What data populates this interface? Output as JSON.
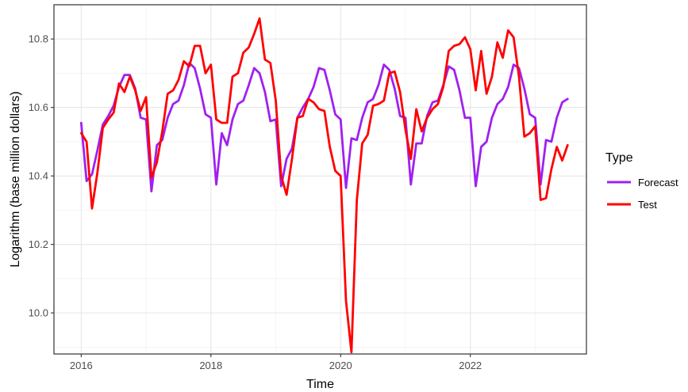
{
  "chart_data": {
    "type": "line",
    "title": "",
    "xlabel": "Time",
    "ylabel": "Logarithm (base million dollars)",
    "xlim": [
      2015.58,
      2023.79
    ],
    "ylim": [
      9.88,
      10.9
    ],
    "x_ticks": [
      2016,
      2018,
      2020,
      2022
    ],
    "x_tick_labels": [
      "2016",
      "2018",
      "2020",
      "2022"
    ],
    "y_ticks": [
      10.0,
      10.2,
      10.4,
      10.6,
      10.8
    ],
    "y_tick_labels": [
      "10.0",
      "10.2",
      "10.4",
      "10.6",
      "10.8"
    ],
    "grid": true,
    "legend": {
      "title": "Type",
      "position": "right",
      "entries": [
        "Forecast",
        "Test"
      ]
    },
    "series": [
      {
        "name": "Forecast",
        "color": "#a020f0",
        "x": [
          2016.0,
          2016.083,
          2016.167,
          2016.25,
          2016.333,
          2016.417,
          2016.5,
          2016.583,
          2016.667,
          2016.75,
          2016.833,
          2016.917,
          2017.0,
          2017.083,
          2017.167,
          2017.25,
          2017.333,
          2017.417,
          2017.5,
          2017.583,
          2017.667,
          2017.75,
          2017.833,
          2017.917,
          2018.0,
          2018.083,
          2018.167,
          2018.25,
          2018.333,
          2018.417,
          2018.5,
          2018.583,
          2018.667,
          2018.75,
          2018.833,
          2018.917,
          2019.0,
          2019.083,
          2019.167,
          2019.25,
          2019.333,
          2019.417,
          2019.5,
          2019.583,
          2019.667,
          2019.75,
          2019.833,
          2019.917,
          2020.0,
          2020.083,
          2020.167,
          2020.25,
          2020.333,
          2020.417,
          2020.5,
          2020.583,
          2020.667,
          2020.75,
          2020.833,
          2020.917,
          2021.0,
          2021.083,
          2021.167,
          2021.25,
          2021.333,
          2021.417,
          2021.5,
          2021.583,
          2021.667,
          2021.75,
          2021.833,
          2021.917,
          2022.0,
          2022.083,
          2022.167,
          2022.25,
          2022.333,
          2022.417,
          2022.5,
          2022.583,
          2022.667,
          2022.75,
          2022.833,
          2022.917,
          2023.0,
          2023.083,
          2023.167,
          2023.25,
          2023.333,
          2023.417,
          2023.5
        ],
        "values": [
          10.555,
          10.385,
          10.405,
          10.475,
          10.55,
          10.575,
          10.605,
          10.66,
          10.695,
          10.695,
          10.655,
          10.57,
          10.565,
          10.355,
          10.49,
          10.505,
          10.57,
          10.61,
          10.62,
          10.665,
          10.73,
          10.715,
          10.655,
          10.58,
          10.57,
          10.375,
          10.525,
          10.49,
          10.565,
          10.61,
          10.62,
          10.665,
          10.715,
          10.7,
          10.645,
          10.56,
          10.565,
          10.37,
          10.45,
          10.48,
          10.57,
          10.6,
          10.625,
          10.66,
          10.715,
          10.71,
          10.65,
          10.58,
          10.565,
          10.365,
          10.51,
          10.505,
          10.57,
          10.615,
          10.625,
          10.665,
          10.725,
          10.71,
          10.655,
          10.575,
          10.57,
          10.375,
          10.495,
          10.495,
          10.575,
          10.615,
          10.62,
          10.665,
          10.72,
          10.71,
          10.65,
          10.57,
          10.57,
          10.37,
          10.485,
          10.5,
          10.57,
          10.61,
          10.625,
          10.66,
          10.725,
          10.715,
          10.655,
          10.58,
          10.57,
          10.375,
          10.505,
          10.5,
          10.57,
          10.615,
          10.625
        ]
      },
      {
        "name": "Test",
        "color": "#ff0000",
        "x": [
          2016.0,
          2016.083,
          2016.167,
          2016.25,
          2016.333,
          2016.417,
          2016.5,
          2016.583,
          2016.667,
          2016.75,
          2016.833,
          2016.917,
          2017.0,
          2017.083,
          2017.167,
          2017.25,
          2017.333,
          2017.417,
          2017.5,
          2017.583,
          2017.667,
          2017.75,
          2017.833,
          2017.917,
          2018.0,
          2018.083,
          2018.167,
          2018.25,
          2018.333,
          2018.417,
          2018.5,
          2018.583,
          2018.667,
          2018.75,
          2018.833,
          2018.917,
          2019.0,
          2019.083,
          2019.167,
          2019.25,
          2019.333,
          2019.417,
          2019.5,
          2019.583,
          2019.667,
          2019.75,
          2019.833,
          2019.917,
          2020.0,
          2020.083,
          2020.167,
          2020.25,
          2020.333,
          2020.417,
          2020.5,
          2020.583,
          2020.667,
          2020.75,
          2020.833,
          2020.917,
          2021.0,
          2021.083,
          2021.167,
          2021.25,
          2021.333,
          2021.417,
          2021.5,
          2021.583,
          2021.667,
          2021.75,
          2021.833,
          2021.917,
          2022.0,
          2022.083,
          2022.167,
          2022.25,
          2022.333,
          2022.417,
          2022.5,
          2022.583,
          2022.667,
          2022.75,
          2022.833,
          2022.917,
          2023.0,
          2023.083,
          2023.167,
          2023.25,
          2023.333,
          2023.417,
          2023.5
        ],
        "values": [
          10.525,
          10.5,
          10.305,
          10.41,
          10.54,
          10.565,
          10.585,
          10.67,
          10.645,
          10.69,
          10.65,
          10.59,
          10.63,
          10.395,
          10.44,
          10.53,
          10.64,
          10.65,
          10.68,
          10.735,
          10.72,
          10.78,
          10.78,
          10.7,
          10.725,
          10.565,
          10.555,
          10.555,
          10.69,
          10.7,
          10.76,
          10.775,
          10.815,
          10.86,
          10.74,
          10.73,
          10.62,
          10.4,
          10.345,
          10.45,
          10.57,
          10.575,
          10.625,
          10.615,
          10.595,
          10.59,
          10.485,
          10.415,
          10.4,
          10.035,
          9.885,
          10.33,
          10.495,
          10.52,
          10.605,
          10.61,
          10.62,
          10.7,
          10.705,
          10.645,
          10.535,
          10.45,
          10.595,
          10.53,
          10.57,
          10.595,
          10.61,
          10.66,
          10.765,
          10.78,
          10.785,
          10.805,
          10.77,
          10.65,
          10.765,
          10.64,
          10.69,
          10.79,
          10.745,
          10.825,
          10.805,
          10.69,
          10.515,
          10.525,
          10.545,
          10.33,
          10.335,
          10.42,
          10.485,
          10.445,
          10.49
        ]
      }
    ]
  }
}
